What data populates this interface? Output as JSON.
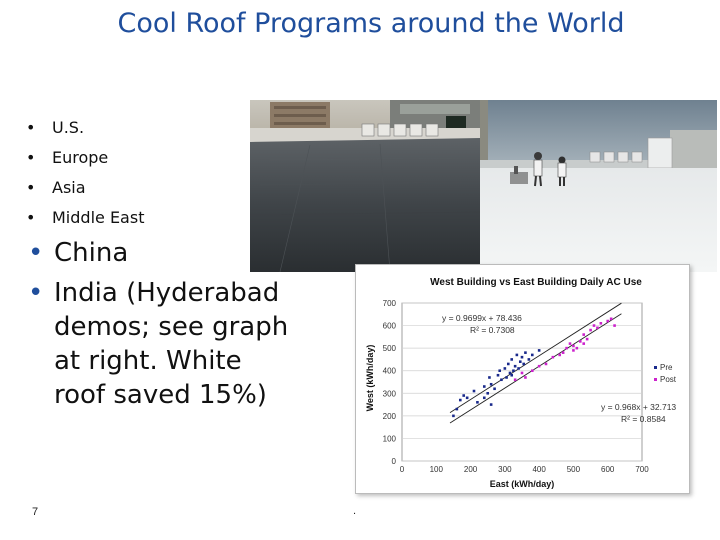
{
  "slide": {
    "title": "Cool Roof Programs around the World",
    "small_bullets": [
      "U.S.",
      "Europe",
      "Asia",
      "Middle East"
    ],
    "big_bullets": [
      "China",
      "India (Hyderabad demos; see graph at right.  White roof saved 15%)"
    ],
    "bullet_glyph": "•",
    "page_number": "7",
    "footer_mark": "."
  },
  "colors": {
    "title": "#1f4e9c",
    "pre": "#1a2a8c",
    "post": "#cc22cc"
  },
  "chart_data": {
    "type": "scatter",
    "title": "West Building vs East Building Daily AC Use",
    "xlabel": "East (kWh/day)",
    "ylabel": "West (kWh/day)",
    "xlim": [
      0,
      700
    ],
    "ylim": [
      0,
      700
    ],
    "x_ticks": [
      "0",
      "100",
      "200",
      "300",
      "400",
      "500",
      "600",
      "700"
    ],
    "y_ticks": [
      "0",
      "100",
      "200",
      "300",
      "400",
      "500",
      "600",
      "700"
    ],
    "legend_position": "right",
    "grid": true,
    "series": [
      {
        "name": "Pre",
        "color": "#1a2a8c",
        "equation": "y = 0.9699x + 78.436",
        "r2": "R² = 0.7308",
        "fit": {
          "slope": 0.9699,
          "intercept": 78.436
        },
        "points": [
          [
            150,
            200
          ],
          [
            160,
            230
          ],
          [
            170,
            270
          ],
          [
            180,
            290
          ],
          [
            190,
            280
          ],
          [
            210,
            310
          ],
          [
            220,
            260
          ],
          [
            240,
            330
          ],
          [
            250,
            300
          ],
          [
            255,
            370
          ],
          [
            260,
            340
          ],
          [
            270,
            320
          ],
          [
            280,
            380
          ],
          [
            285,
            400
          ],
          [
            290,
            360
          ],
          [
            300,
            410
          ],
          [
            305,
            370
          ],
          [
            310,
            430
          ],
          [
            315,
            390
          ],
          [
            320,
            450
          ],
          [
            325,
            400
          ],
          [
            330,
            420
          ],
          [
            335,
            470
          ],
          [
            340,
            410
          ],
          [
            345,
            440
          ],
          [
            350,
            460
          ],
          [
            355,
            430
          ],
          [
            360,
            480
          ],
          [
            370,
            450
          ],
          [
            380,
            470
          ],
          [
            400,
            490
          ],
          [
            240,
            280
          ],
          [
            260,
            250
          ],
          [
            320,
            380
          ]
        ]
      },
      {
        "name": "Post",
        "color": "#cc22cc",
        "equation": "y = 0.968x + 32.713",
        "r2": "R² = 0.8584",
        "fit": {
          "slope": 0.968,
          "intercept": 32.713
        },
        "points": [
          [
            330,
            360
          ],
          [
            350,
            390
          ],
          [
            360,
            370
          ],
          [
            380,
            400
          ],
          [
            400,
            420
          ],
          [
            420,
            430
          ],
          [
            440,
            460
          ],
          [
            460,
            470
          ],
          [
            480,
            500
          ],
          [
            490,
            520
          ],
          [
            500,
            510
          ],
          [
            520,
            530
          ],
          [
            530,
            560
          ],
          [
            540,
            540
          ],
          [
            550,
            580
          ],
          [
            560,
            600
          ],
          [
            580,
            610
          ],
          [
            600,
            620
          ],
          [
            610,
            630
          ],
          [
            620,
            600
          ],
          [
            500,
            490
          ],
          [
            470,
            480
          ],
          [
            570,
            590
          ],
          [
            530,
            520
          ],
          [
            510,
            500
          ]
        ]
      }
    ]
  }
}
